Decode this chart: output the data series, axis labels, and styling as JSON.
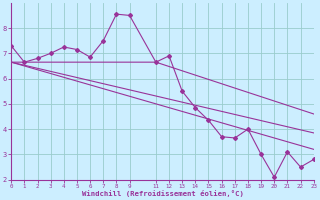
{
  "xlabel": "Windchill (Refroidissement éolien,°C)",
  "bg_color": "#cceeff",
  "line_color": "#993399",
  "grid_color": "#99cccc",
  "xlim": [
    0,
    23
  ],
  "ylim": [
    2,
    9
  ],
  "yticks": [
    2,
    3,
    4,
    5,
    6,
    7,
    8
  ],
  "xticks": [
    0,
    1,
    2,
    3,
    4,
    5,
    6,
    7,
    8,
    9,
    11,
    12,
    13,
    14,
    15,
    16,
    17,
    18,
    19,
    20,
    21,
    22,
    23
  ],
  "main_x": [
    0,
    1,
    2,
    3,
    4,
    5,
    6,
    7,
    8,
    9,
    11,
    12,
    13,
    14,
    15,
    16,
    17,
    18,
    19,
    20,
    21,
    22,
    23
  ],
  "main_y": [
    7.3,
    6.65,
    6.8,
    7.0,
    7.25,
    7.15,
    6.85,
    7.5,
    8.55,
    8.5,
    6.65,
    6.9,
    5.5,
    4.85,
    4.35,
    3.7,
    3.65,
    4.0,
    3.0,
    2.1,
    3.1,
    2.5,
    2.8
  ],
  "trend1_x": [
    0,
    11,
    23
  ],
  "trend1_y": [
    6.65,
    6.65,
    4.6
  ],
  "trend2_x": [
    0,
    23
  ],
  "trend2_y": [
    6.65,
    3.85
  ],
  "trend3_x": [
    0,
    23
  ],
  "trend3_y": [
    6.65,
    3.2
  ]
}
